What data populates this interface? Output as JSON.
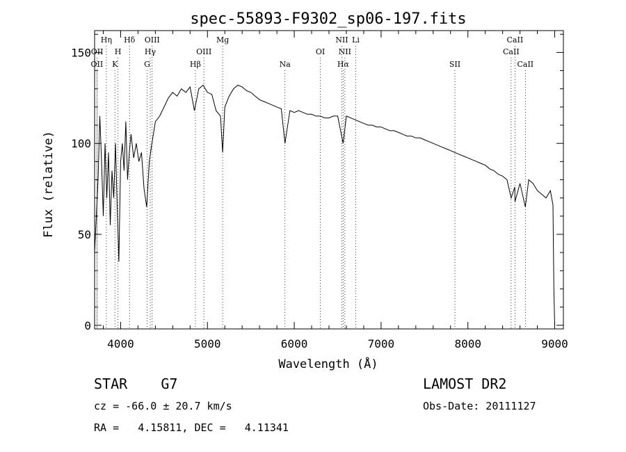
{
  "chart_data": {
    "type": "line",
    "title": "spec-55893-F9302_sp06-197.fits",
    "xlabel": "Wavelength (Å)",
    "ylabel": "Flux (relative)",
    "xlim": [
      3700,
      9100
    ],
    "ylim": [
      -2,
      162
    ],
    "x_ticks": [
      4000,
      5000,
      6000,
      7000,
      8000,
      9000
    ],
    "y_ticks": [
      0,
      50,
      100,
      150
    ],
    "spectrum": [
      [
        3700,
        40
      ],
      [
        3720,
        60
      ],
      [
        3740,
        80
      ],
      [
        3760,
        115
      ],
      [
        3780,
        90
      ],
      [
        3800,
        60
      ],
      [
        3820,
        100
      ],
      [
        3840,
        70
      ],
      [
        3860,
        95
      ],
      [
        3880,
        55
      ],
      [
        3900,
        85
      ],
      [
        3920,
        70
      ],
      [
        3940,
        100
      ],
      [
        3960,
        65
      ],
      [
        3980,
        35
      ],
      [
        4000,
        90
      ],
      [
        4020,
        100
      ],
      [
        4040,
        85
      ],
      [
        4060,
        112
      ],
      [
        4080,
        80
      ],
      [
        4100,
        95
      ],
      [
        4120,
        105
      ],
      [
        4150,
        92
      ],
      [
        4180,
        100
      ],
      [
        4210,
        90
      ],
      [
        4240,
        95
      ],
      [
        4270,
        75
      ],
      [
        4300,
        65
      ],
      [
        4330,
        90
      ],
      [
        4360,
        100
      ],
      [
        4400,
        112
      ],
      [
        4450,
        115
      ],
      [
        4500,
        120
      ],
      [
        4550,
        125
      ],
      [
        4600,
        128
      ],
      [
        4650,
        126
      ],
      [
        4700,
        130
      ],
      [
        4750,
        128
      ],
      [
        4800,
        131
      ],
      [
        4850,
        118
      ],
      [
        4900,
        130
      ],
      [
        4950,
        132
      ],
      [
        5000,
        128
      ],
      [
        5050,
        127
      ],
      [
        5100,
        118
      ],
      [
        5150,
        115
      ],
      [
        5175,
        95
      ],
      [
        5200,
        120
      ],
      [
        5250,
        126
      ],
      [
        5300,
        130
      ],
      [
        5350,
        132
      ],
      [
        5400,
        131
      ],
      [
        5450,
        129
      ],
      [
        5500,
        128
      ],
      [
        5550,
        126
      ],
      [
        5600,
        124
      ],
      [
        5650,
        123
      ],
      [
        5700,
        122
      ],
      [
        5750,
        121
      ],
      [
        5800,
        120
      ],
      [
        5850,
        119
      ],
      [
        5893,
        100
      ],
      [
        5950,
        118
      ],
      [
        6000,
        117
      ],
      [
        6050,
        118
      ],
      [
        6100,
        117
      ],
      [
        6150,
        116
      ],
      [
        6200,
        116
      ],
      [
        6250,
        115
      ],
      [
        6300,
        115
      ],
      [
        6350,
        114
      ],
      [
        6400,
        114
      ],
      [
        6450,
        115
      ],
      [
        6500,
        115
      ],
      [
        6563,
        100
      ],
      [
        6600,
        115
      ],
      [
        6650,
        114
      ],
      [
        6700,
        113
      ],
      [
        6750,
        112
      ],
      [
        6800,
        111
      ],
      [
        6850,
        110
      ],
      [
        6900,
        110
      ],
      [
        6950,
        109
      ],
      [
        7000,
        109
      ],
      [
        7050,
        108
      ],
      [
        7100,
        107
      ],
      [
        7150,
        107
      ],
      [
        7200,
        106
      ],
      [
        7250,
        105
      ],
      [
        7300,
        104
      ],
      [
        7350,
        104
      ],
      [
        7400,
        103
      ],
      [
        7450,
        103
      ],
      [
        7500,
        102
      ],
      [
        7550,
        101
      ],
      [
        7600,
        100
      ],
      [
        7650,
        99
      ],
      [
        7700,
        98
      ],
      [
        7750,
        97
      ],
      [
        7800,
        96
      ],
      [
        7850,
        95
      ],
      [
        7900,
        94
      ],
      [
        7950,
        93
      ],
      [
        8000,
        92
      ],
      [
        8050,
        91
      ],
      [
        8100,
        90
      ],
      [
        8150,
        89
      ],
      [
        8200,
        88
      ],
      [
        8250,
        86
      ],
      [
        8300,
        85
      ],
      [
        8350,
        83
      ],
      [
        8400,
        82
      ],
      [
        8450,
        80
      ],
      [
        8498,
        70
      ],
      [
        8540,
        76
      ],
      [
        8542,
        68
      ],
      [
        8600,
        78
      ],
      [
        8662,
        65
      ],
      [
        8700,
        80
      ],
      [
        8750,
        78
      ],
      [
        8800,
        74
      ],
      [
        8850,
        72
      ],
      [
        8900,
        70
      ],
      [
        8950,
        74
      ],
      [
        8980,
        66
      ],
      [
        8990,
        20
      ],
      [
        9000,
        0
      ]
    ],
    "line_markers": [
      {
        "label": "OII",
        "x": 3727,
        "row": 3
      },
      {
        "label": "OII",
        "x": 3729,
        "row": 2
      },
      {
        "label": "Hη",
        "x": 3835,
        "row": 1
      },
      {
        "label": "H",
        "x": 3969,
        "row": 2
      },
      {
        "label": "K",
        "x": 3934,
        "row": 3
      },
      {
        "label": "Hδ",
        "x": 4102,
        "row": 1
      },
      {
        "label": "OIII",
        "x": 4363,
        "row": 1
      },
      {
        "label": "Hγ",
        "x": 4341,
        "row": 2
      },
      {
        "label": "G",
        "x": 4305,
        "row": 3
      },
      {
        "label": "Hβ",
        "x": 4861,
        "row": 3
      },
      {
        "label": "OIII",
        "x": 4959,
        "row": 2
      },
      {
        "label": "Mg",
        "x": 5175,
        "row": 1
      },
      {
        "label": "Na",
        "x": 5893,
        "row": 3
      },
      {
        "label": "OI",
        "x": 6300,
        "row": 2
      },
      {
        "label": "NII",
        "x": 6548,
        "row": 1
      },
      {
        "label": "NII",
        "x": 6583,
        "row": 2
      },
      {
        "label": "Hα",
        "x": 6563,
        "row": 3
      },
      {
        "label": "Li",
        "x": 6708,
        "row": 1
      },
      {
        "label": "SII",
        "x": 7850,
        "row": 3
      },
      {
        "label": "CaII",
        "x": 8542,
        "row": 1
      },
      {
        "label": "CaII",
        "x": 8498,
        "row": 2
      },
      {
        "label": "CaII",
        "x": 8662,
        "row": 3
      }
    ]
  },
  "info": {
    "object_type": "STAR",
    "subclass": "G7",
    "cz": "cz = -66.0 ± 20.7 km/s",
    "radec": "RA =   4.15811, DEC =   4.11341",
    "survey": "LAMOST DR2",
    "obs_date": "Obs-Date: 20111127"
  }
}
